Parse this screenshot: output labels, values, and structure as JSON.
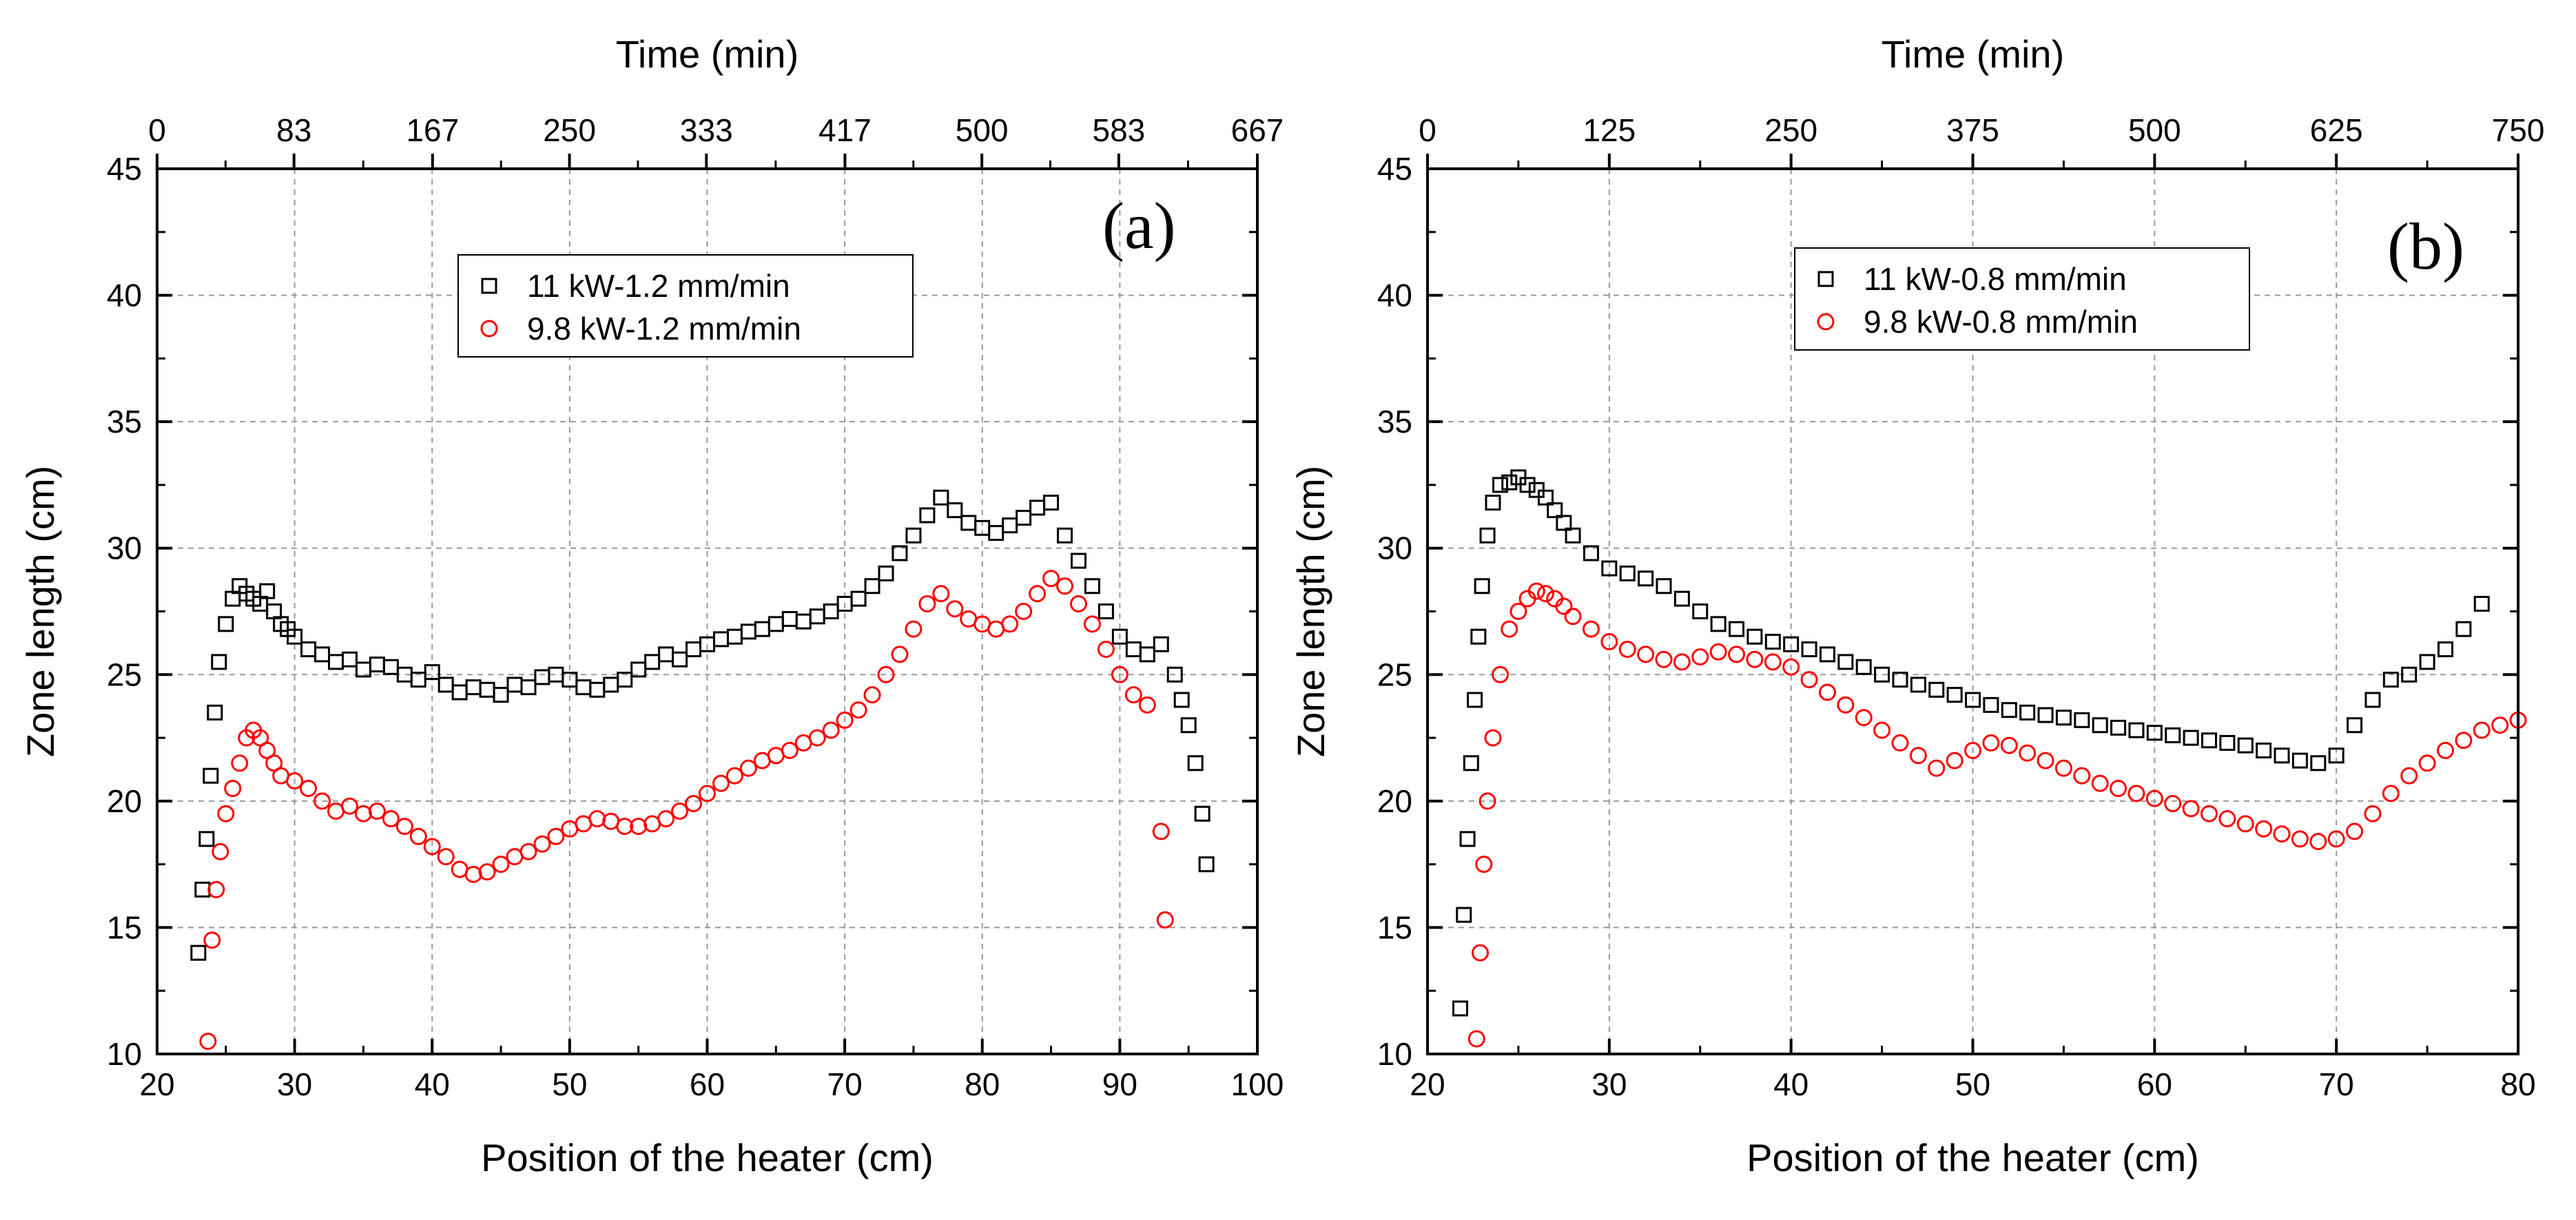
{
  "colors": {
    "series_black": "#000000",
    "series_red": "#ff0000",
    "grid": "#999999",
    "background": "#ffffff"
  },
  "chart_data": [
    {
      "type": "scatter",
      "panel_label": "(a)",
      "xlabel": "Position of the heater (cm)",
      "ylabel": "Zone length (cm)",
      "x2label": "Time (min)",
      "xlim": [
        20,
        100
      ],
      "ylim": [
        10,
        45
      ],
      "x2lim": [
        0,
        667
      ],
      "xticks": [
        "20",
        "30",
        "40",
        "50",
        "60",
        "70",
        "80",
        "90",
        "100"
      ],
      "yticks": [
        "10",
        "15",
        "20",
        "25",
        "30",
        "35",
        "40",
        "45"
      ],
      "x2ticks": [
        "0",
        "83",
        "167",
        "250",
        "333",
        "417",
        "500",
        "583",
        "667"
      ],
      "grid": true,
      "legend_position": "top-center",
      "series": [
        {
          "name": "11 kW-1.2 mm/min",
          "marker": "square",
          "color": "#000000",
          "x": [
            23,
            23.3,
            23.6,
            23.9,
            24.2,
            24.5,
            25,
            25.5,
            26,
            26.5,
            27,
            27.5,
            28,
            28.5,
            29,
            29.5,
            30,
            31,
            32,
            33,
            34,
            35,
            36,
            37,
            38,
            39,
            40,
            41,
            42,
            43,
            44,
            45,
            46,
            47,
            48,
            49,
            50,
            51,
            52,
            53,
            54,
            55,
            56,
            57,
            58,
            59,
            60,
            61,
            62,
            63,
            64,
            65,
            66,
            67,
            68,
            69,
            70,
            71,
            72,
            73,
            74,
            75,
            76,
            77,
            78,
            79,
            80,
            81,
            82,
            83,
            84,
            85,
            86,
            87,
            88,
            89,
            90,
            91,
            92,
            93,
            94,
            94.5,
            95,
            95.5,
            96,
            96.3
          ],
          "y": [
            14.0,
            16.5,
            18.5,
            21.0,
            23.5,
            25.5,
            27.0,
            28.0,
            28.5,
            28.2,
            28.0,
            27.8,
            28.3,
            27.5,
            27.0,
            26.8,
            26.5,
            26.0,
            25.8,
            25.5,
            25.6,
            25.2,
            25.4,
            25.3,
            25.0,
            24.8,
            25.1,
            24.6,
            24.3,
            24.5,
            24.4,
            24.2,
            24.6,
            24.5,
            24.9,
            25.0,
            24.8,
            24.5,
            24.4,
            24.6,
            24.8,
            25.2,
            25.5,
            25.8,
            25.6,
            26.0,
            26.2,
            26.4,
            26.5,
            26.7,
            26.8,
            27.0,
            27.2,
            27.1,
            27.3,
            27.5,
            27.8,
            28.0,
            28.5,
            29.0,
            29.8,
            30.5,
            31.3,
            32.0,
            31.5,
            31.0,
            30.8,
            30.6,
            30.9,
            31.2,
            31.6,
            31.8,
            30.5,
            29.5,
            28.5,
            27.5,
            26.5,
            26.0,
            25.8,
            26.2,
            25.0,
            24.0,
            23.0,
            21.5,
            19.5,
            17.5
          ]
        },
        {
          "name": "9.8 kW-1.2 mm/min",
          "marker": "circle",
          "color": "#ff0000",
          "x": [
            23.7,
            24,
            24.3,
            24.6,
            25,
            25.5,
            26,
            26.5,
            27,
            27.5,
            28,
            28.5,
            29,
            30,
            31,
            32,
            33,
            34,
            35,
            36,
            37,
            38,
            39,
            40,
            41,
            42,
            43,
            44,
            45,
            46,
            47,
            48,
            49,
            50,
            51,
            52,
            53,
            54,
            55,
            56,
            57,
            58,
            59,
            60,
            61,
            62,
            63,
            64,
            65,
            66,
            67,
            68,
            69,
            70,
            71,
            72,
            73,
            74,
            75,
            76,
            77,
            78,
            79,
            80,
            81,
            82,
            83,
            84,
            85,
            86,
            87,
            88,
            89,
            90,
            91,
            92,
            93,
            93.3
          ],
          "y": [
            10.5,
            14.5,
            16.5,
            18.0,
            19.5,
            20.5,
            21.5,
            22.5,
            22.8,
            22.5,
            22.0,
            21.5,
            21.0,
            20.8,
            20.5,
            20.0,
            19.6,
            19.8,
            19.5,
            19.6,
            19.3,
            19.0,
            18.6,
            18.2,
            17.8,
            17.3,
            17.1,
            17.2,
            17.5,
            17.8,
            18.0,
            18.3,
            18.6,
            18.9,
            19.1,
            19.3,
            19.2,
            19.0,
            19.0,
            19.1,
            19.3,
            19.6,
            19.9,
            20.3,
            20.7,
            21.0,
            21.3,
            21.6,
            21.8,
            22.0,
            22.3,
            22.5,
            22.8,
            23.2,
            23.6,
            24.2,
            25.0,
            25.8,
            26.8,
            27.8,
            28.2,
            27.6,
            27.2,
            27.0,
            26.8,
            27.0,
            27.5,
            28.2,
            28.8,
            28.5,
            27.8,
            27.0,
            26.0,
            25.0,
            24.2,
            23.8,
            18.8,
            15.3
          ]
        }
      ]
    },
    {
      "type": "scatter",
      "panel_label": "(b)",
      "xlabel": "Position of the heater (cm)",
      "ylabel": "Zone length (cm)",
      "x2label": "Time (min)",
      "xlim": [
        20,
        80
      ],
      "ylim": [
        10,
        45
      ],
      "x2lim": [
        0,
        750
      ],
      "xticks": [
        "20",
        "30",
        "40",
        "50",
        "60",
        "70",
        "80"
      ],
      "yticks": [
        "10",
        "15",
        "20",
        "25",
        "30",
        "35",
        "40",
        "45"
      ],
      "x2ticks": [
        "0",
        "125",
        "250",
        "375",
        "500",
        "625",
        "750"
      ],
      "grid": true,
      "legend_position": "top-center",
      "series": [
        {
          "name": "11 kW-0.8 mm/min",
          "marker": "square",
          "color": "#000000",
          "x": [
            21.8,
            22,
            22.2,
            22.4,
            22.6,
            22.8,
            23,
            23.3,
            23.6,
            24,
            24.5,
            25,
            25.5,
            26,
            26.5,
            27,
            27.5,
            28,
            29,
            30,
            31,
            32,
            33,
            34,
            35,
            36,
            37,
            38,
            39,
            40,
            41,
            42,
            43,
            44,
            45,
            46,
            47,
            48,
            49,
            50,
            51,
            52,
            53,
            54,
            55,
            56,
            57,
            58,
            59,
            60,
            61,
            62,
            63,
            64,
            65,
            66,
            67,
            68,
            69,
            70,
            71,
            72,
            73,
            74,
            75,
            76,
            77,
            78
          ],
          "y": [
            11.8,
            15.5,
            18.5,
            21.5,
            24.0,
            26.5,
            28.5,
            30.5,
            31.8,
            32.5,
            32.6,
            32.8,
            32.5,
            32.3,
            32.0,
            31.5,
            31.0,
            30.5,
            29.8,
            29.2,
            29.0,
            28.8,
            28.5,
            28.0,
            27.5,
            27.0,
            26.8,
            26.5,
            26.3,
            26.2,
            26.0,
            25.8,
            25.5,
            25.3,
            25.0,
            24.8,
            24.6,
            24.4,
            24.2,
            24.0,
            23.8,
            23.6,
            23.5,
            23.4,
            23.3,
            23.2,
            23.0,
            22.9,
            22.8,
            22.7,
            22.6,
            22.5,
            22.4,
            22.3,
            22.2,
            22.0,
            21.8,
            21.6,
            21.5,
            21.8,
            23.0,
            24.0,
            24.8,
            25.0,
            25.5,
            26.0,
            26.8,
            27.8
          ]
        },
        {
          "name": "9.8 kW-0.8 mm/min",
          "marker": "circle",
          "color": "#ff0000",
          "x": [
            22.7,
            22.9,
            23.1,
            23.3,
            23.6,
            24,
            24.5,
            25,
            25.5,
            26,
            26.5,
            27,
            27.5,
            28,
            29,
            30,
            31,
            32,
            33,
            34,
            35,
            36,
            37,
            38,
            39,
            40,
            41,
            42,
            43,
            44,
            45,
            46,
            47,
            48,
            49,
            50,
            51,
            52,
            53,
            54,
            55,
            56,
            57,
            58,
            59,
            60,
            61,
            62,
            63,
            64,
            65,
            66,
            67,
            68,
            69,
            70,
            71,
            72,
            73,
            74,
            75,
            76,
            77,
            78,
            79,
            80
          ],
          "y": [
            10.6,
            14.0,
            17.5,
            20.0,
            22.5,
            25.0,
            26.8,
            27.5,
            28.0,
            28.3,
            28.2,
            28.0,
            27.7,
            27.3,
            26.8,
            26.3,
            26.0,
            25.8,
            25.6,
            25.5,
            25.7,
            25.9,
            25.8,
            25.6,
            25.5,
            25.3,
            24.8,
            24.3,
            23.8,
            23.3,
            22.8,
            22.3,
            21.8,
            21.3,
            21.6,
            22.0,
            22.3,
            22.2,
            21.9,
            21.6,
            21.3,
            21.0,
            20.7,
            20.5,
            20.3,
            20.1,
            19.9,
            19.7,
            19.5,
            19.3,
            19.1,
            18.9,
            18.7,
            18.5,
            18.4,
            18.5,
            18.8,
            19.5,
            20.3,
            21.0,
            21.5,
            22.0,
            22.4,
            22.8,
            23.0,
            23.2
          ]
        }
      ]
    }
  ]
}
